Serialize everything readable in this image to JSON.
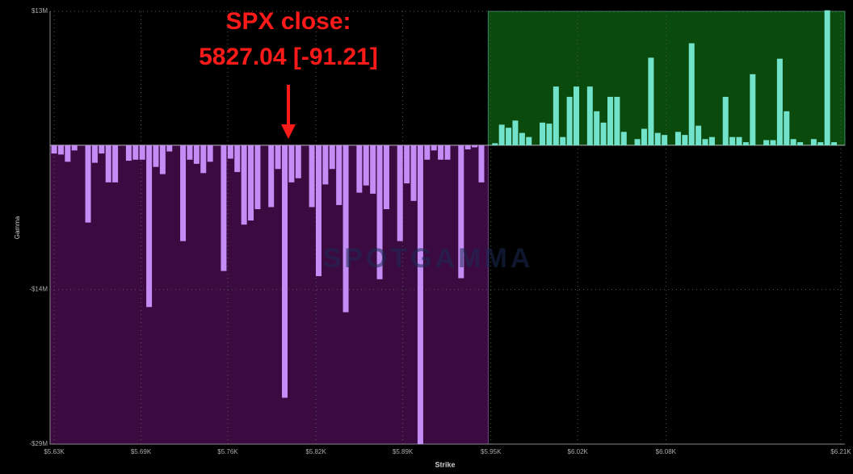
{
  "chart_data": {
    "type": "bar",
    "annotation": [
      "SPX close:",
      "5827.04 [-91.21]"
    ],
    "watermark": "SPOTGAMMA",
    "x_label": "Strike",
    "y_label": "Gamma",
    "x": [
      5630,
      5635,
      5640,
      5645,
      5655,
      5660,
      5665,
      5670,
      5675,
      5685,
      5690,
      5695,
      5700,
      5705,
      5710,
      5715,
      5725,
      5730,
      5735,
      5740,
      5745,
      5755,
      5760,
      5765,
      5770,
      5775,
      5780,
      5790,
      5795,
      5800,
      5805,
      5810,
      5820,
      5825,
      5830,
      5835,
      5840,
      5845,
      5855,
      5860,
      5865,
      5870,
      5875,
      5885,
      5890,
      5895,
      5900,
      5905,
      5910,
      5915,
      5920,
      5930,
      5935,
      5940,
      5945,
      5955,
      5960,
      5965,
      5970,
      5975,
      5980,
      5990,
      5995,
      6000,
      6005,
      6010,
      6015,
      6025,
      6030,
      6035,
      6040,
      6045,
      6050,
      6060,
      6065,
      6070,
      6075,
      6080,
      6090,
      6095,
      6100,
      6105,
      6110,
      6115,
      6125,
      6130,
      6135,
      6140,
      6145,
      6155,
      6160,
      6165,
      6170,
      6175,
      6180,
      6190,
      6195,
      6200,
      6205
    ],
    "values": [
      -0.8,
      -0.9,
      -1.6,
      -0.5,
      -7.5,
      -1.7,
      -0.8,
      -3.6,
      -3.6,
      -1.5,
      -1.4,
      -1.4,
      -15.7,
      -2.1,
      -2.8,
      -0.6,
      -9.3,
      -1.4,
      -1.8,
      -2.7,
      -1.6,
      -12.2,
      -1.3,
      -2.6,
      -7.7,
      -7.3,
      -6.2,
      -6.0,
      -2.3,
      -24.5,
      -3.6,
      -3.2,
      -6.0,
      -12.7,
      -3.8,
      -2.3,
      -5.8,
      -16.2,
      -4.6,
      -3.9,
      -4.7,
      -13.0,
      -6.2,
      -9.3,
      -3.7,
      -5.4,
      -29.0,
      -1.4,
      -0.5,
      -1.4,
      -1.4,
      -12.9,
      -0.4,
      -0.2,
      -3.6,
      0.2,
      2.0,
      1.7,
      2.4,
      1.2,
      0.8,
      2.2,
      2.1,
      5.7,
      0.8,
      4.7,
      5.7,
      5.7,
      3.3,
      2.2,
      4.7,
      4.7,
      1.3,
      0.6,
      1.6,
      8.5,
      1.2,
      1.0,
      1.3,
      1.0,
      9.9,
      1.9,
      0.6,
      0.8,
      4.7,
      0.8,
      0.8,
      0.3,
      6.9,
      0.5,
      0.5,
      8.4,
      3.3,
      0.6,
      0.3,
      0.6,
      0.3,
      13.1,
      0.3
    ],
    "negative_color": "#c48df5",
    "positive_color": "#72e3cb",
    "negative_region_color": "#3a0a40",
    "positive_region_color": "#0a4a0c",
    "xlim": [
      5627,
      6213
    ],
    "xticks": [
      {
        "value": 5630,
        "label": "$5.63K"
      },
      {
        "value": 5694,
        "label": "$5.69K"
      },
      {
        "value": 5758,
        "label": "$5.76K"
      },
      {
        "value": 5823,
        "label": "$5.82K"
      },
      {
        "value": 5887,
        "label": "$5.89K"
      },
      {
        "value": 5952,
        "label": "$5.95K"
      },
      {
        "value": 6016,
        "label": "$6.02K"
      },
      {
        "value": 6081,
        "label": "$6.08K"
      },
      {
        "value": 6210,
        "label": "$6.21K"
      }
    ],
    "ylim": [
      -29,
      13
    ],
    "yticks": [
      {
        "value": 13,
        "label": "$13M"
      },
      {
        "value": -14,
        "label": "-$14M"
      },
      {
        "value": -29,
        "label": "-$29M"
      }
    ],
    "grid": true
  }
}
